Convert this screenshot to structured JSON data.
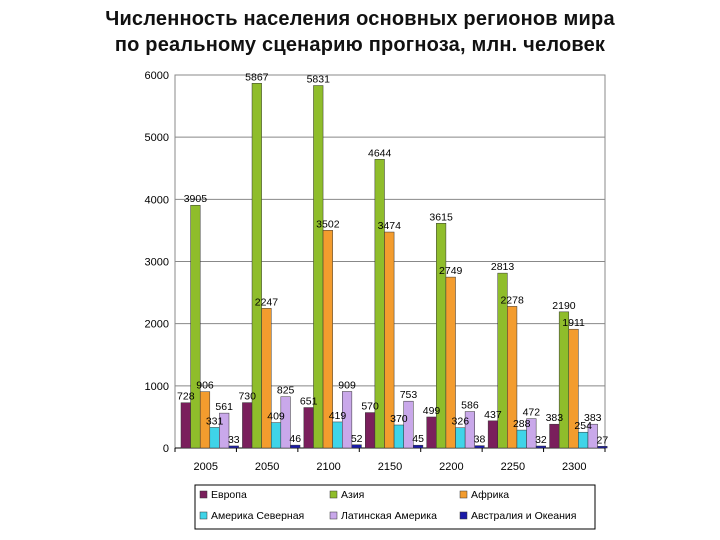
{
  "chart_data": {
    "type": "bar",
    "title_lines": [
      "Численность населения основных регионов мира",
      "по реальному сценарию прогноза, млн. человек"
    ],
    "categories": [
      "2005",
      "2050",
      "2100",
      "2150",
      "2200",
      "2250",
      "2300"
    ],
    "ylim": [
      0,
      6000
    ],
    "yticks": [
      0,
      1000,
      2000,
      3000,
      4000,
      5000,
      6000
    ],
    "grid": true,
    "legend_position": "bottom",
    "series": [
      {
        "name": "Европа",
        "color": "#7a1f5c",
        "values": [
          728,
          730,
          651,
          570,
          499,
          437,
          383
        ]
      },
      {
        "name": "Азия",
        "color": "#8fbd2b",
        "values": [
          3905,
          5867,
          5831,
          4644,
          3615,
          2813,
          2190
        ]
      },
      {
        "name": "Африка",
        "color": "#f39c2e",
        "values": [
          906,
          2247,
          3502,
          3474,
          2749,
          2278,
          1911
        ]
      },
      {
        "name": "Америка Северная",
        "color": "#3fd4e8",
        "values": [
          331,
          409,
          419,
          370,
          326,
          288,
          254
        ]
      },
      {
        "name": "Латинская Америка",
        "color": "#c9a8ea",
        "values": [
          561,
          825,
          909,
          753,
          586,
          472,
          383
        ]
      },
      {
        "name": "Австралия и Океания",
        "color": "#1a1aa8",
        "values": [
          33,
          46,
          52,
          45,
          38,
          32,
          27
        ]
      }
    ]
  }
}
